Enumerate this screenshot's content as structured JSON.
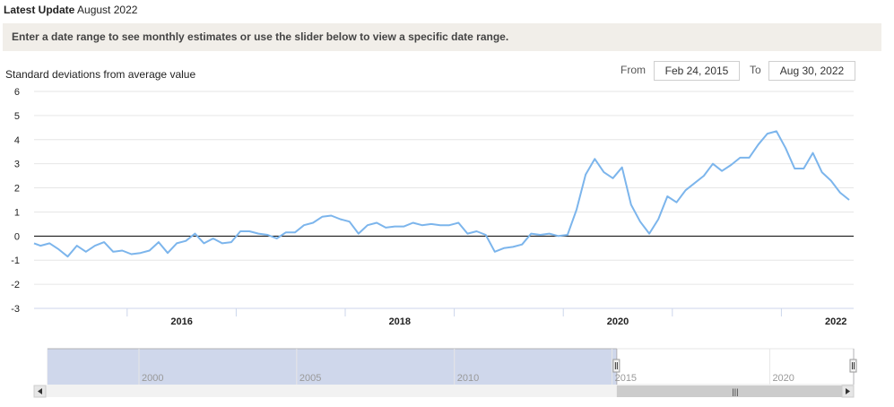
{
  "header": {
    "latest_label": "Latest Update",
    "latest_value": "August 2022"
  },
  "banner": {
    "text": "Enter a date range to see monthly estimates or use the slider below to view a specific date range."
  },
  "range": {
    "from_label": "From",
    "from_value": "Feb 24, 2015",
    "to_label": "To",
    "to_value": "Aug 30, 2022"
  },
  "colors": {
    "line": "#7cb5ec",
    "navigator_fill": "#cfd7eb",
    "zero_line": "#000000",
    "grid": "#e6e6e6"
  },
  "chart_data": {
    "type": "line",
    "title": "",
    "ylabel": "Standard deviations from average value",
    "xlabel": "",
    "ylim": [
      -3,
      6
    ],
    "y_ticks": [
      "6",
      "5",
      "4",
      "3",
      "2",
      "1",
      "0",
      "-1",
      "-2",
      "-3"
    ],
    "x_tick_labels": [
      "2016",
      "2018",
      "2020",
      "2022"
    ],
    "xlim": [
      "2015-02-24",
      "2022-08-30"
    ],
    "grid": true,
    "series": [
      {
        "x": [
          "2015-02",
          "2015-03",
          "2015-04",
          "2015-05",
          "2015-06",
          "2015-07",
          "2015-08",
          "2015-09",
          "2015-10",
          "2015-11",
          "2015-12",
          "2016-01",
          "2016-02",
          "2016-03",
          "2016-04",
          "2016-05",
          "2016-06",
          "2016-07",
          "2016-08",
          "2016-09",
          "2016-10",
          "2016-11",
          "2016-12",
          "2017-01",
          "2017-02",
          "2017-03",
          "2017-04",
          "2017-05",
          "2017-06",
          "2017-07",
          "2017-08",
          "2017-09",
          "2017-10",
          "2017-11",
          "2017-12",
          "2018-01",
          "2018-02",
          "2018-03",
          "2018-04",
          "2018-05",
          "2018-06",
          "2018-07",
          "2018-08",
          "2018-09",
          "2018-10",
          "2018-11",
          "2018-12",
          "2019-01",
          "2019-02",
          "2019-03",
          "2019-04",
          "2019-05",
          "2019-06",
          "2019-07",
          "2019-08",
          "2019-09",
          "2019-10",
          "2019-11",
          "2019-12",
          "2020-01",
          "2020-02",
          "2020-03",
          "2020-04",
          "2020-05",
          "2020-06",
          "2020-07",
          "2020-08",
          "2020-09",
          "2020-10",
          "2020-11",
          "2020-12",
          "2021-01",
          "2021-02",
          "2021-03",
          "2021-04",
          "2021-05",
          "2021-06",
          "2021-07",
          "2021-08",
          "2021-09",
          "2021-10",
          "2021-11",
          "2021-12",
          "2022-01",
          "2022-02",
          "2022-03",
          "2022-04",
          "2022-05",
          "2022-06",
          "2022-07",
          "2022-08"
        ],
        "values": [
          -0.3,
          -0.4,
          -0.3,
          -0.55,
          -0.85,
          -0.4,
          -0.65,
          -0.4,
          -0.25,
          -0.65,
          -0.6,
          -0.75,
          -0.7,
          -0.6,
          -0.25,
          -0.7,
          -0.3,
          -0.2,
          0.1,
          -0.3,
          -0.1,
          -0.3,
          -0.25,
          0.2,
          0.2,
          0.1,
          0.05,
          -0.1,
          0.15,
          0.15,
          0.45,
          0.55,
          0.8,
          0.85,
          0.7,
          0.6,
          0.1,
          0.45,
          0.55,
          0.35,
          0.4,
          0.4,
          0.55,
          0.45,
          0.5,
          0.45,
          0.45,
          0.55,
          0.1,
          0.2,
          0.05,
          -0.65,
          -0.5,
          -0.45,
          -0.35,
          0.1,
          0.05,
          0.1,
          0.0,
          0.05,
          1.1,
          2.55,
          3.2,
          2.65,
          2.4,
          2.85,
          1.3,
          0.6,
          0.1,
          0.7,
          1.65,
          1.4,
          1.9,
          2.2,
          2.5,
          3.0,
          2.7,
          2.95,
          3.25,
          3.25,
          3.8,
          4.25,
          4.35,
          3.65,
          2.8,
          2.8,
          3.45,
          2.65,
          2.3,
          1.8,
          1.5
        ]
      }
    ]
  },
  "navigator": {
    "year_labels": [
      "2000",
      "2005",
      "2010",
      "2015",
      "2020"
    ],
    "selected_from_year": 2015.15,
    "selected_to_year": 2022.66,
    "full_from_year": 1997.1,
    "full_to_year": 2022.66,
    "scroll_grip": "|||"
  }
}
